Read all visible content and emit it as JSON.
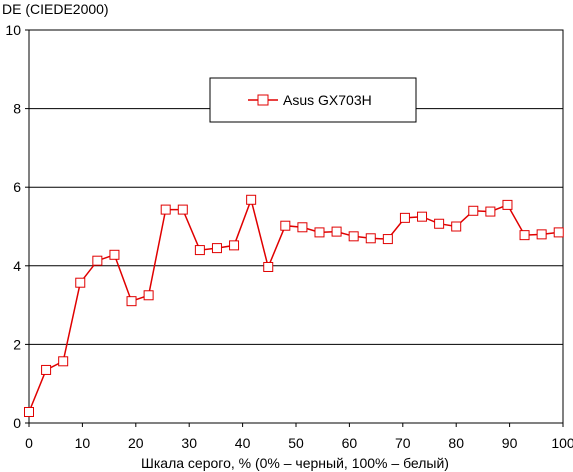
{
  "chart_data": {
    "type": "line",
    "ylabel": "DE (CIEDE2000)",
    "xlabel": "Шкала серого, % (0% – черный, 100% – белый)",
    "xlim": [
      0,
      100
    ],
    "ylim": [
      0,
      10
    ],
    "x_ticks": [
      0,
      10,
      20,
      30,
      40,
      50,
      60,
      70,
      80,
      90,
      100
    ],
    "y_ticks": [
      0,
      2,
      4,
      6,
      8,
      10
    ],
    "grid": "horizontal",
    "legend_position": "top-center",
    "series": [
      {
        "name": "Asus GX703H",
        "color": "#e00000",
        "marker": "open-square",
        "x": [
          0,
          3.2,
          6.4,
          9.6,
          12.8,
          16,
          19.2,
          22.4,
          25.6,
          28.8,
          32,
          35.2,
          38.4,
          41.6,
          44.8,
          48,
          51.2,
          54.4,
          57.6,
          60.8,
          64,
          67.2,
          70.4,
          73.6,
          76.8,
          80,
          83.2,
          86.4,
          89.6,
          92.8,
          96,
          99.2
        ],
        "y": [
          0.28,
          1.35,
          1.57,
          3.57,
          4.13,
          4.28,
          3.1,
          3.25,
          5.43,
          5.43,
          4.4,
          4.45,
          4.52,
          5.68,
          3.97,
          5.02,
          4.98,
          4.85,
          4.87,
          4.75,
          4.7,
          4.68,
          5.22,
          5.25,
          5.07,
          5.0,
          5.4,
          5.38,
          5.55,
          4.78,
          4.8,
          4.85
        ]
      }
    ]
  }
}
